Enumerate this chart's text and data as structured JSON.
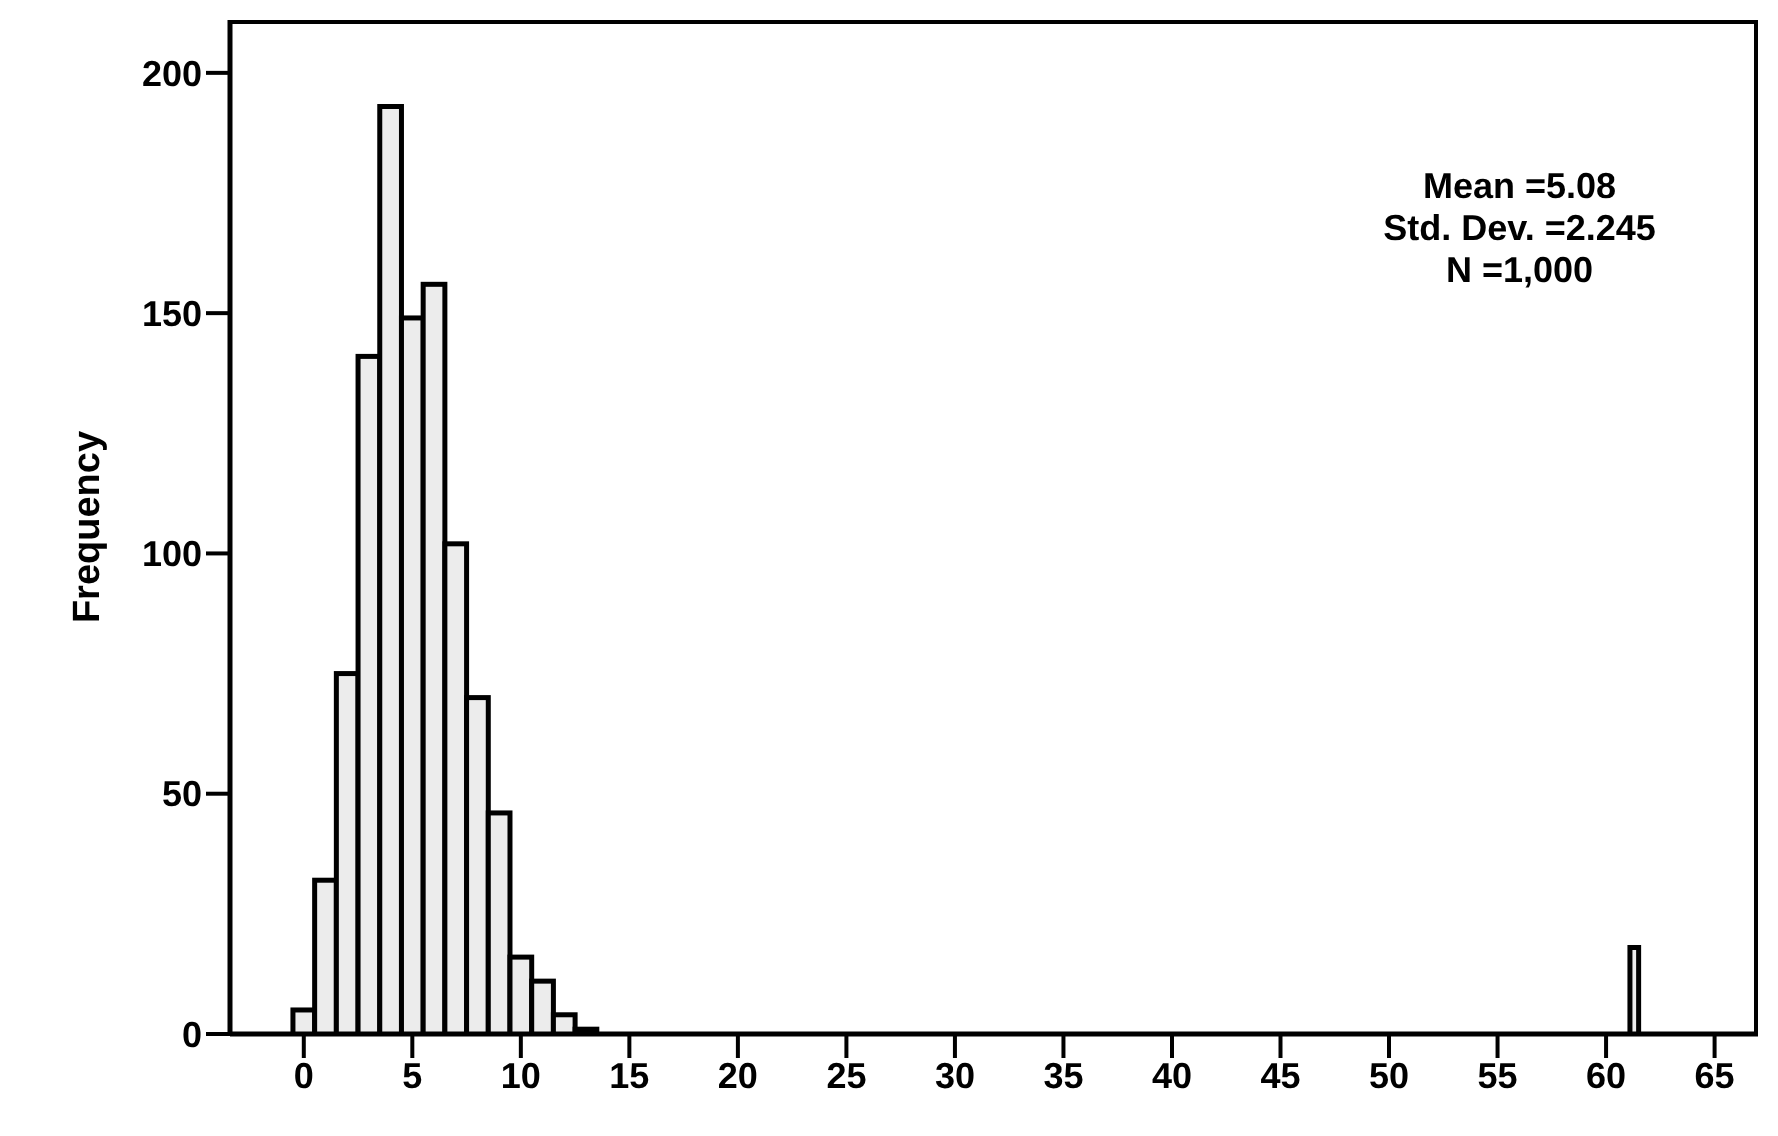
{
  "chart_data": {
    "type": "histogram",
    "ylabel": "Frequency",
    "bins": [
      -0.5,
      0.5,
      1.5,
      2.5,
      3.5,
      4.5,
      5.5,
      6.5,
      7.5,
      8.5,
      9.5,
      10.5,
      11.5,
      12.5,
      13.5,
      61.1,
      61.5
    ],
    "values": [
      5,
      32,
      75,
      141,
      193,
      149,
      156,
      102,
      70,
      46,
      16,
      11,
      4,
      1,
      0,
      18
    ],
    "color": "#ececec",
    "xlim": [
      -3.4,
      67
    ],
    "xticks": [
      0,
      5,
      10,
      15,
      20,
      25,
      30,
      35,
      40,
      45,
      50,
      55,
      60,
      65
    ],
    "ylim": [
      0,
      211
    ],
    "yticks": [
      0,
      50,
      100,
      150,
      200
    ],
    "annotations": [
      "Mean =5.08",
      "Std. Dev. =2.245",
      "N =1,000"
    ],
    "grid": false
  }
}
